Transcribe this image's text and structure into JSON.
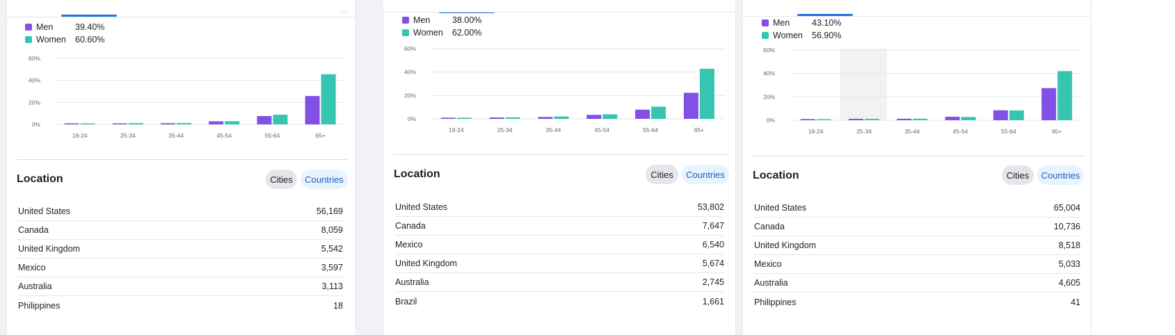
{
  "colors": {
    "men": "#8250e6",
    "women": "#36c5b0",
    "grid": "#e4e6eb",
    "highlight": "#f2f2f2"
  },
  "panels": [
    {
      "legend": [
        {
          "name": "Men",
          "value": "39.40%"
        },
        {
          "name": "Women",
          "value": "60.60%"
        }
      ],
      "location": {
        "title": "Location",
        "cities_label": "Cities",
        "countries_label": "Countries",
        "rows": [
          {
            "name": "United States",
            "value": "56,169"
          },
          {
            "name": "Canada",
            "value": "8,059"
          },
          {
            "name": "United Kingdom",
            "value": "5,542"
          },
          {
            "name": "Mexico",
            "value": "3,597"
          },
          {
            "name": "Australia",
            "value": "3,113"
          },
          {
            "name": "Philippines",
            "value": "18"
          }
        ]
      }
    },
    {
      "legend": [
        {
          "name": "Men",
          "value": "38.00%"
        },
        {
          "name": "Women",
          "value": "62.00%"
        }
      ],
      "location": {
        "title": "Location",
        "cities_label": "Cities",
        "countries_label": "Countries",
        "rows": [
          {
            "name": "United States",
            "value": "53,802"
          },
          {
            "name": "Canada",
            "value": "7,647"
          },
          {
            "name": "Mexico",
            "value": "6,540"
          },
          {
            "name": "United Kingdom",
            "value": "5,674"
          },
          {
            "name": "Australia",
            "value": "2,745"
          },
          {
            "name": "Brazil",
            "value": "1,661"
          }
        ]
      }
    },
    {
      "legend": [
        {
          "name": "Men",
          "value": "43.10%"
        },
        {
          "name": "Women",
          "value": "56.90%"
        }
      ],
      "location": {
        "title": "Location",
        "cities_label": "Cities",
        "countries_label": "Countries",
        "rows": [
          {
            "name": "United States",
            "value": "65,004"
          },
          {
            "name": "Canada",
            "value": "10,736"
          },
          {
            "name": "United Kingdom",
            "value": "8,518"
          },
          {
            "name": "Mexico",
            "value": "5,033"
          },
          {
            "name": "Australia",
            "value": "4,605"
          },
          {
            "name": "Philippines",
            "value": "41"
          }
        ]
      }
    }
  ],
  "chart_data": [
    {
      "type": "bar",
      "categories": [
        "18-24",
        "25-34",
        "35-44",
        "45-54",
        "55-64",
        "65+"
      ],
      "series": [
        {
          "name": "Men",
          "values": [
            0.6,
            0.9,
            1.1,
            2.8,
            7.6,
            25.8
          ]
        },
        {
          "name": "Women",
          "values": [
            0.5,
            1.2,
            1.3,
            2.9,
            8.8,
            45.6
          ]
        }
      ],
      "yticks": [
        "0%",
        "20%",
        "40%",
        "60%"
      ],
      "ylim": [
        0,
        60
      ],
      "grid": true,
      "highlight_category": null
    },
    {
      "type": "bar",
      "categories": [
        "18-24",
        "25-34",
        "35-44",
        "45-54",
        "55-64",
        "65+"
      ],
      "series": [
        {
          "name": "Men",
          "values": [
            1.0,
            1.2,
            1.6,
            3.4,
            7.9,
            22.3
          ]
        },
        {
          "name": "Women",
          "values": [
            1.0,
            1.3,
            2.0,
            3.9,
            10.4,
            42.8
          ]
        }
      ],
      "yticks": [
        "0%",
        "20%",
        "40%",
        "60%"
      ],
      "ylim": [
        0,
        60
      ],
      "grid": true,
      "highlight_category": null
    },
    {
      "type": "bar",
      "categories": [
        "18-24",
        "25-34",
        "35-44",
        "45-54",
        "55-64",
        "65+"
      ],
      "series": [
        {
          "name": "Men",
          "values": [
            1.0,
            1.2,
            1.3,
            3.0,
            8.5,
            27.5
          ]
        },
        {
          "name": "Women",
          "values": [
            0.9,
            1.2,
            1.3,
            2.8,
            8.4,
            42.0
          ]
        }
      ],
      "yticks": [
        "0%",
        "20%",
        "40%",
        "60%"
      ],
      "ylim": [
        0,
        60
      ],
      "grid": true,
      "highlight_category": "25-34"
    }
  ]
}
